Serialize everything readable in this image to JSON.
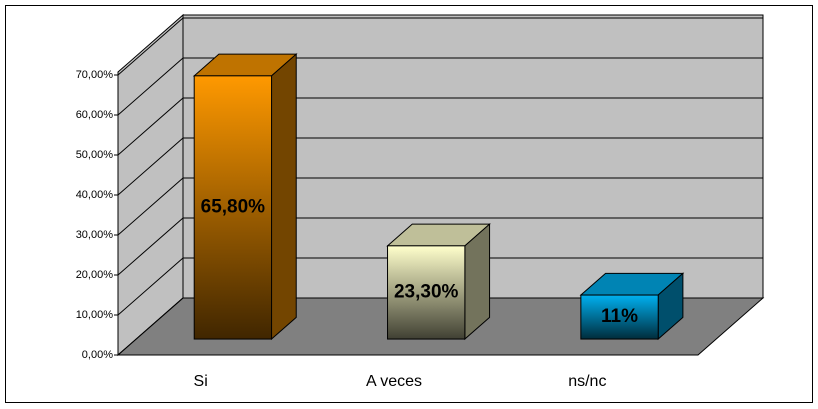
{
  "chart_data": {
    "type": "bar3d",
    "categories": [
      "Si",
      "A veces",
      "ns/nc"
    ],
    "values": [
      65.8,
      23.3,
      11
    ],
    "value_labels": [
      "65,80%",
      "23,30%",
      "11%"
    ],
    "colors": [
      "#ff9900",
      "#ffffcc",
      "#00b0f0"
    ],
    "ylim": [
      0,
      70
    ],
    "yticks": [
      {
        "value": 0,
        "label": "0,00%"
      },
      {
        "value": 10,
        "label": "10,00%"
      },
      {
        "value": 20,
        "label": "20,00%"
      },
      {
        "value": 30,
        "label": "30,00%"
      },
      {
        "value": 40,
        "label": "40,00%"
      },
      {
        "value": 50,
        "label": "50,00%"
      },
      {
        "value": 60,
        "label": "60,00%"
      },
      {
        "value": 70,
        "label": "70,00%"
      }
    ],
    "grid": true
  }
}
